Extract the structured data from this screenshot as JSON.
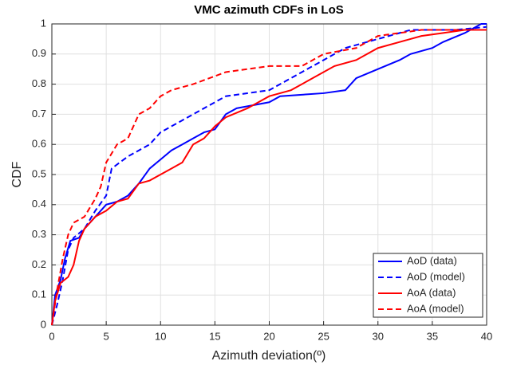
{
  "chart_data": {
    "type": "line",
    "title": "VMC azimuth CDFs in LoS",
    "xlabel": "Azimuth deviation(º)",
    "ylabel": "CDF",
    "xlim": [
      0,
      40
    ],
    "xticks": [
      0,
      5,
      10,
      15,
      20,
      25,
      30,
      35,
      40
    ],
    "ylim": [
      0,
      1
    ],
    "yticks": [
      0,
      0.1,
      0.2,
      0.3,
      0.4,
      0.5,
      0.6,
      0.7,
      0.8,
      0.9,
      1
    ],
    "grid": true,
    "legend": "lower right",
    "series": [
      {
        "name": "AoD (data)",
        "color": "#0000ff",
        "dashed": false,
        "x": [
          0,
          0.3,
          0.8,
          1.2,
          1.7,
          2.5,
          3,
          4,
          5,
          6,
          7,
          8,
          9,
          10,
          11,
          12,
          13,
          14,
          15,
          16,
          17,
          20,
          21,
          25,
          27,
          28,
          30,
          32,
          33,
          35,
          36,
          38,
          39.5,
          40
        ],
        "values": [
          0,
          0.1,
          0.15,
          0.22,
          0.28,
          0.29,
          0.32,
          0.36,
          0.4,
          0.41,
          0.43,
          0.47,
          0.52,
          0.55,
          0.58,
          0.6,
          0.62,
          0.64,
          0.65,
          0.7,
          0.72,
          0.74,
          0.76,
          0.77,
          0.78,
          0.82,
          0.85,
          0.88,
          0.9,
          0.92,
          0.94,
          0.97,
          1,
          1
        ]
      },
      {
        "name": "AoD (model)",
        "color": "#0000ff",
        "dashed": true,
        "x": [
          0,
          0.5,
          1,
          1.5,
          2,
          3,
          4,
          5,
          5.5,
          7,
          8,
          9,
          10,
          12,
          14,
          16,
          20,
          21,
          23,
          25,
          27,
          29,
          31,
          33,
          37,
          40
        ],
        "values": [
          0,
          0.07,
          0.15,
          0.25,
          0.29,
          0.32,
          0.38,
          0.43,
          0.52,
          0.56,
          0.58,
          0.6,
          0.64,
          0.68,
          0.72,
          0.76,
          0.78,
          0.8,
          0.84,
          0.88,
          0.92,
          0.94,
          0.96,
          0.98,
          0.98,
          0.99
        ]
      },
      {
        "name": "AoA (data)",
        "color": "#ff0000",
        "dashed": false,
        "x": [
          0,
          0.3,
          0.8,
          1.5,
          2,
          2.5,
          3,
          4,
          5,
          6,
          7,
          8,
          9,
          10,
          11,
          12,
          13,
          14,
          15,
          16,
          18,
          20,
          22,
          24,
          26,
          28,
          30,
          32,
          34,
          36,
          38,
          40
        ],
        "values": [
          0,
          0.08,
          0.14,
          0.16,
          0.2,
          0.28,
          0.32,
          0.36,
          0.38,
          0.41,
          0.42,
          0.47,
          0.48,
          0.5,
          0.52,
          0.54,
          0.6,
          0.62,
          0.66,
          0.69,
          0.72,
          0.76,
          0.78,
          0.82,
          0.86,
          0.88,
          0.92,
          0.94,
          0.96,
          0.97,
          0.98,
          0.98
        ]
      },
      {
        "name": "AoA (model)",
        "color": "#ff0000",
        "dashed": true,
        "x": [
          0,
          0.5,
          1,
          1.5,
          2,
          3,
          4,
          4.5,
          5,
          6,
          7,
          8,
          9,
          10,
          11,
          13,
          16,
          20,
          23,
          24,
          25,
          28,
          30,
          34,
          40
        ],
        "values": [
          0,
          0.12,
          0.22,
          0.3,
          0.34,
          0.36,
          0.42,
          0.46,
          0.54,
          0.6,
          0.62,
          0.7,
          0.72,
          0.76,
          0.78,
          0.8,
          0.84,
          0.86,
          0.86,
          0.88,
          0.9,
          0.92,
          0.96,
          0.98,
          0.98
        ]
      }
    ]
  }
}
